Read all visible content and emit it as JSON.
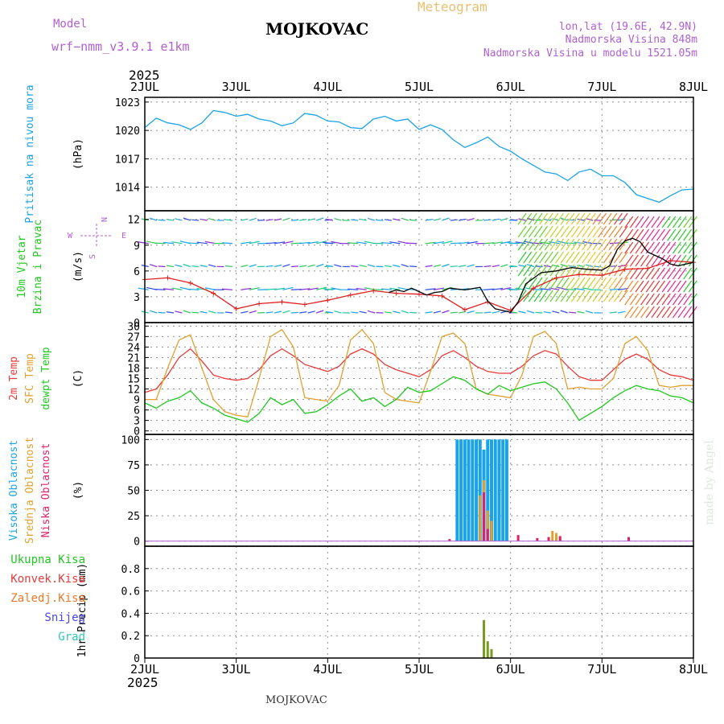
{
  "header": {
    "model_label": "Model",
    "model_name": "wrf−nmm_v3.9.1  e1km",
    "title": "MOJKOVAC",
    "meteogram": "Meteogram",
    "lonlat": "lon,lat (19.6E, 42.9N)",
    "elevation": "Nadmorska Visina 848m",
    "model_elevation": "Nadmorska Visina u modelu 1521.05m",
    "year_top": "2025",
    "year_bottom": "2025",
    "footer": "MOJKOVAC",
    "credit": "made by Angel"
  },
  "colors": {
    "pressure": "#1ba3e8",
    "wind_speed": "#e02020",
    "wind_gust": "#000000",
    "t2m": "#e83a3a",
    "tsfc": "#e0a030",
    "dewpt": "#20c820",
    "high_cloud": "#1ba3e8",
    "mid_cloud": "#e0a030",
    "low_cloud": "#e0206a",
    "total_precip": "#20c820",
    "conv_precip": "#e83a3a",
    "frozen_precip": "#f07828",
    "snow": "#4848e8",
    "graupel": "#30c8b8",
    "grid": "#909090"
  },
  "chart_data": {
    "time_ticks": [
      "2JUL",
      "3JUL",
      "4JUL",
      "5JUL",
      "6JUL",
      "7JUL",
      "8JUL"
    ],
    "time_unit": "hours since 2JUL 00UTC",
    "panels": [
      {
        "type": "line",
        "name": "pressure",
        "label_lines": [
          "Pritisak na nivou mora"
        ],
        "unit": "(hPa)",
        "ylim": [
          1011.5,
          1023.5
        ],
        "yticks": [
          1014,
          1017,
          1020,
          1023
        ],
        "series": [
          {
            "key": "pressure",
            "color": "#1ba3e8",
            "x": [
              0,
              3,
              6,
              9,
              12,
              15,
              18,
              21,
              24,
              27,
              30,
              33,
              36,
              39,
              42,
              45,
              48,
              51,
              54,
              57,
              60,
              63,
              66,
              69,
              72,
              75,
              78,
              81,
              84,
              87,
              90,
              93,
              96,
              99,
              102,
              105,
              108,
              111,
              114,
              117,
              120,
              123,
              126,
              129,
              132,
              135,
              138,
              141,
              144
            ],
            "values": [
              1020.3,
              1021.3,
              1020.8,
              1020.6,
              1020.1,
              1020.8,
              1022.1,
              1021.9,
              1021.5,
              1021.7,
              1021.2,
              1021.0,
              1020.5,
              1020.8,
              1021.8,
              1021.6,
              1021.0,
              1020.9,
              1020.3,
              1020.2,
              1021.2,
              1021.5,
              1021.0,
              1021.2,
              1020.1,
              1020.6,
              1020.1,
              1019.0,
              1018.2,
              1018.7,
              1019.3,
              1018.3,
              1017.8,
              1017.0,
              1016.3,
              1015.6,
              1015.4,
              1014.7,
              1015.6,
              1015.9,
              1015.2,
              1015.2,
              1014.5,
              1013.2,
              1012.8,
              1012.4,
              1013.1,
              1013.7,
              1013.8
            ]
          }
        ]
      },
      {
        "type": "line",
        "name": "wind",
        "label_lines": [
          "10m Vjetar",
          "Brzina i Pravac"
        ],
        "unit": "(m/s)",
        "compass": [
          "W",
          "E",
          "N",
          "S"
        ],
        "ylim": [
          0,
          13
        ],
        "yticks": [
          0,
          3,
          6,
          9,
          12
        ],
        "series": [
          {
            "key": "wind_speed",
            "color": "#e02020",
            "x": [
              0,
              6,
              12,
              18,
              24,
              30,
              36,
              42,
              48,
              54,
              60,
              66,
              72,
              78,
              84,
              90,
              96,
              102,
              108,
              114,
              120,
              126,
              132,
              138,
              144
            ],
            "values": [
              5.0,
              5.2,
              4.6,
              3.4,
              1.6,
              2.2,
              2.4,
              2.1,
              2.6,
              3.2,
              3.7,
              3.4,
              3.3,
              3.1,
              1.5,
              2.4,
              1.4,
              4.0,
              5.2,
              5.6,
              5.5,
              6.2,
              6.3,
              7.2,
              7.0
            ]
          },
          {
            "key": "wind_gust",
            "color": "#000000",
            "x": [
              64,
              66,
              68,
              70,
              72,
              74,
              76,
              78,
              80,
              84,
              88,
              90,
              92,
              96,
              98,
              100,
              104,
              108,
              112,
              116,
              120,
              122,
              124,
              126,
              128,
              130,
              132,
              134,
              136,
              138,
              140,
              142,
              144
            ],
            "values": [
              3.5,
              3.8,
              3.6,
              4.0,
              3.6,
              3.2,
              3.5,
              3.6,
              4.0,
              3.8,
              4.1,
              2.5,
              1.6,
              1.2,
              2.4,
              4.5,
              5.8,
              6.0,
              6.4,
              6.2,
              6.1,
              6.6,
              8.5,
              9.5,
              9.8,
              9.4,
              8.2,
              7.8,
              7.4,
              6.8,
              6.6,
              6.8,
              7.0
            ]
          }
        ]
      },
      {
        "type": "line",
        "name": "temperature",
        "label_lines": [
          "2m Temp",
          "SFC Temp",
          "dewpt Temp"
        ],
        "label_colors": [
          "#e83a3a",
          "#e0a030",
          "#20c820"
        ],
        "unit": "(C)",
        "ylim": [
          -1,
          31
        ],
        "yticks": [
          0,
          3,
          6,
          9,
          12,
          15,
          18,
          21,
          24,
          27,
          30
        ],
        "series": [
          {
            "key": "t2m",
            "color": "#e83a3a",
            "x": [
              0,
              3,
              6,
              9,
              12,
              15,
              18,
              21,
              24,
              27,
              30,
              33,
              36,
              39,
              42,
              45,
              48,
              51,
              54,
              57,
              60,
              63,
              66,
              69,
              72,
              75,
              78,
              81,
              84,
              87,
              90,
              93,
              96,
              99,
              102,
              105,
              108,
              111,
              114,
              117,
              120,
              123,
              126,
              129,
              132,
              135,
              138,
              141,
              144
            ],
            "values": [
              11,
              12,
              16,
              21,
              23.5,
              20,
              16,
              15,
              14.5,
              15,
              17.5,
              21.5,
              23.5,
              21.5,
              19,
              18,
              17,
              18.5,
              22,
              23.5,
              22,
              19,
              17.5,
              16.5,
              15.5,
              17.5,
              21.5,
              23,
              21,
              18.5,
              17,
              16.5,
              16.5,
              18.5,
              21.5,
              23,
              22,
              18.5,
              15.5,
              14.5,
              14.5,
              17.5,
              20.5,
              22,
              20.5,
              17.5,
              16,
              15.5,
              14.5
            ]
          },
          {
            "key": "tsfc",
            "color": "#e0a030",
            "x": [
              0,
              3,
              6,
              9,
              12,
              15,
              18,
              21,
              24,
              27,
              30,
              33,
              36,
              39,
              42,
              45,
              48,
              51,
              54,
              57,
              60,
              63,
              66,
              69,
              72,
              75,
              78,
              81,
              84,
              87,
              90,
              93,
              96,
              99,
              102,
              105,
              108,
              111,
              114,
              117,
              120,
              123,
              126,
              129,
              132,
              135,
              138,
              141,
              144
            ],
            "values": [
              9,
              9,
              18,
              26,
              27.5,
              18,
              9,
              5.5,
              4.5,
              4,
              15,
              27,
              29,
              24,
              9.5,
              9,
              8.5,
              13,
              26,
              29,
              25,
              11,
              9,
              8.5,
              8,
              17,
              27,
              28,
              25,
              12,
              10.5,
              10,
              9.5,
              16,
              27,
              28.5,
              25,
              12,
              12.5,
              12,
              12,
              15,
              25,
              27,
              23,
              13,
              12.5,
              13,
              13
            ]
          },
          {
            "key": "dewpt",
            "color": "#20c820",
            "x": [
              0,
              3,
              6,
              9,
              12,
              15,
              18,
              21,
              24,
              27,
              30,
              33,
              36,
              39,
              42,
              45,
              48,
              51,
              54,
              57,
              60,
              63,
              66,
              69,
              72,
              75,
              78,
              81,
              84,
              87,
              90,
              93,
              96,
              99,
              102,
              105,
              108,
              111,
              114,
              117,
              120,
              123,
              126,
              129,
              132,
              135,
              138,
              141,
              144
            ],
            "values": [
              8,
              6.5,
              8.5,
              9.5,
              11.5,
              8,
              6.5,
              4.5,
              3.5,
              2.5,
              5,
              9.5,
              7.5,
              9,
              5,
              5.5,
              7.5,
              10,
              12,
              8.5,
              9.5,
              7,
              9,
              12.5,
              11,
              11.5,
              13.5,
              15.5,
              14.5,
              12,
              10.5,
              13,
              11.5,
              12.5,
              13.5,
              14,
              12,
              8,
              3,
              5,
              7,
              9.5,
              11.5,
              13,
              12,
              11.5,
              10,
              9.5,
              8
            ]
          }
        ]
      },
      {
        "type": "bar",
        "name": "cloud",
        "label_lines": [
          "Visoka Oblacnost",
          "Srednja Oblacnost",
          "Niska Oblacnost"
        ],
        "label_colors": [
          "#1ba3e8",
          "#e0a030",
          "#e0206a"
        ],
        "unit": "(%)",
        "ylim": [
          -5,
          105
        ],
        "yticks": [
          0,
          25,
          50,
          75,
          100
        ],
        "series": [
          {
            "key": "high_cloud",
            "color": "#1ba3e8",
            "x": [
              82,
              83,
              84,
              85,
              86,
              87,
              88,
              89,
              90,
              91,
              92,
              93,
              94,
              95
            ],
            "values": [
              100,
              100,
              100,
              100,
              100,
              100,
              100,
              90,
              100,
              100,
              100,
              100,
              100,
              100
            ]
          },
          {
            "key": "mid_cloud",
            "color": "#e0a030",
            "x": [
              88,
              89,
              90,
              91,
              107,
              108
            ],
            "values": [
              45,
              60,
              30,
              20,
              10,
              8
            ]
          },
          {
            "key": "low_cloud",
            "color": "#e0206a",
            "x": [
              80,
              89,
              90,
              98,
              103,
              106,
              109,
              127
            ],
            "values": [
              2,
              48,
              12,
              6,
              3,
              4,
              5,
              4
            ]
          }
        ]
      },
      {
        "type": "bar",
        "name": "precip",
        "label_lines": [
          "1hr Precip (mm)"
        ],
        "legend": [
          "Ukupna Kisa",
          "Konvek.Kisa",
          "Zaledj.Kisa",
          "Snijeg",
          "Grad"
        ],
        "legend_colors": [
          "#20c820",
          "#e83a3a",
          "#f07828",
          "#4848e8",
          "#30c8b8"
        ],
        "ylim": [
          0,
          1
        ],
        "yticks": [
          0,
          0.2,
          0.4,
          0.6,
          0.8
        ],
        "series": [
          {
            "key": "total_precip",
            "color": "#7a9a20",
            "x": [
              89,
              90,
              91
            ],
            "values": [
              0.34,
              0.15,
              0.08
            ]
          }
        ]
      }
    ]
  }
}
